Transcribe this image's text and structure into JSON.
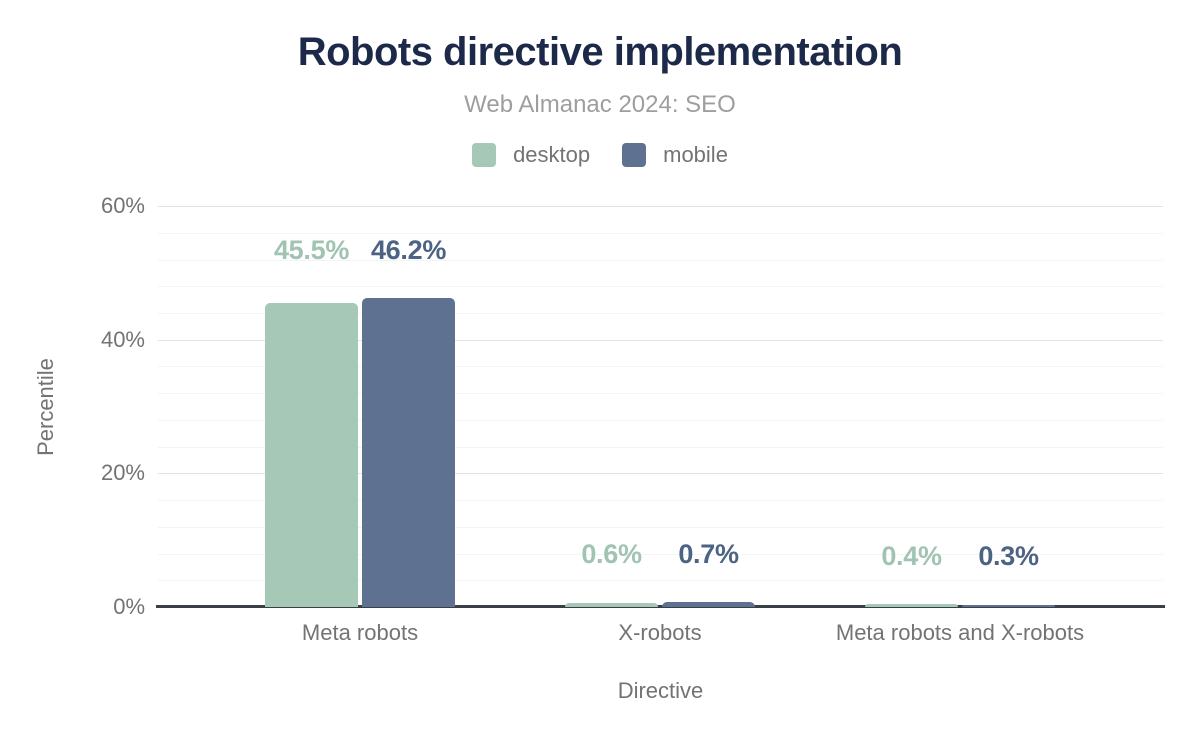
{
  "chart_data": {
    "type": "bar",
    "title": "Robots directive implementation",
    "subtitle": "Web Almanac 2024: SEO",
    "xlabel": "Directive",
    "ylabel": "Percentile",
    "categories": [
      "Meta robots",
      "X-robots",
      "Meta robots and X-robots"
    ],
    "series": [
      {
        "name": "desktop",
        "color": "#a6c8b7",
        "label_color": "#a0c4b1",
        "values": [
          45.5,
          0.6,
          0.4
        ],
        "labels": [
          "45.5%",
          "0.6%",
          "0.4%"
        ]
      },
      {
        "name": "mobile",
        "color": "#5f7190",
        "label_color": "#4c6384",
        "values": [
          46.2,
          0.7,
          0.3
        ],
        "labels": [
          "46.2%",
          "0.7%",
          "0.3%"
        ]
      }
    ],
    "ylim": [
      0,
      60
    ],
    "yticks": [
      {
        "value": 0,
        "label": "0%"
      },
      {
        "value": 20,
        "label": "20%"
      },
      {
        "value": 40,
        "label": "40%"
      },
      {
        "value": 60,
        "label": "60%"
      }
    ],
    "minor_grid_step": 4,
    "major_grid_step": 20,
    "grid": true,
    "legend_position": "top",
    "colors": {
      "background": "#ffffff",
      "title": "#1c2948",
      "subtitle": "#9e9e9e",
      "axis_text": "#737373",
      "axis_line": "#3a3f45",
      "grid_major": "#e2e2e2",
      "grid_minor": "#f4f4f4"
    }
  }
}
